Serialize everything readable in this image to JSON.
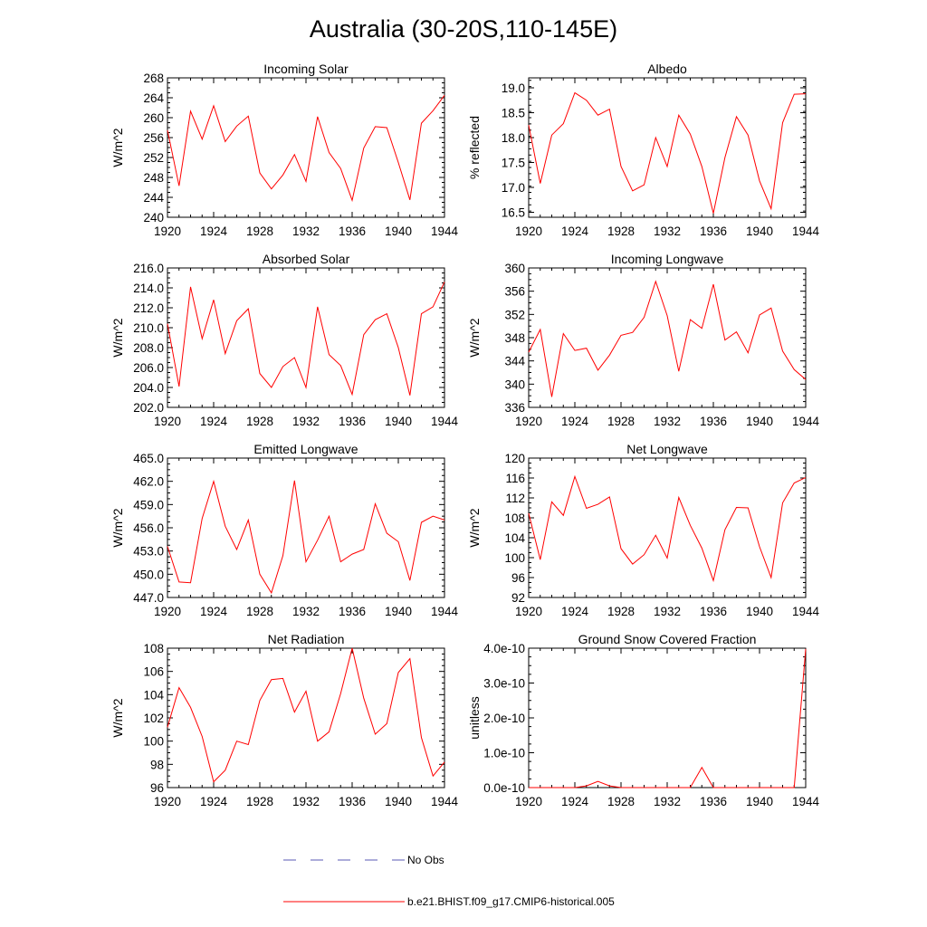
{
  "figure": {
    "title": "Australia (30-20S,110-145E)",
    "model_color": "#ff0000",
    "obs_color": "#5a5ab4"
  },
  "legend": {
    "obs_label": "No Obs",
    "model_label": "b.e21.BHIST.f09_g17.CMIP6-historical.005"
  },
  "chart_data": [
    {
      "type": "line",
      "title": "Incoming Solar",
      "ylabel": "W/m^2",
      "xlim": [
        1920,
        1944
      ],
      "ylim": [
        240,
        268
      ],
      "x_ticks": [
        "1920",
        "1924",
        "1928",
        "1932",
        "1936",
        "1940",
        "1944"
      ],
      "y_ticks": [
        "240",
        "244",
        "248",
        "252",
        "256",
        "260",
        "264",
        "268"
      ],
      "y_tick_values": [
        240,
        244,
        248,
        252,
        256,
        260,
        264,
        268
      ],
      "x": [
        1920,
        1921,
        1922,
        1923,
        1924,
        1925,
        1926,
        1927,
        1928,
        1929,
        1930,
        1931,
        1932,
        1933,
        1934,
        1935,
        1936,
        1937,
        1938,
        1939,
        1940,
        1941,
        1942,
        1943,
        1944
      ],
      "series": [
        {
          "name": "b.e21.BHIST.f09_g17.CMIP6-historical.005",
          "values": [
            257.5,
            246.3,
            261.3,
            255.7,
            262.4,
            255.2,
            258.3,
            260.3,
            248.9,
            245.7,
            248.5,
            252.6,
            247.2,
            260.2,
            253.0,
            249.8,
            243.4,
            253.9,
            258.2,
            258.0,
            251.0,
            243.5,
            258.9,
            261.4,
            264.5
          ]
        }
      ]
    },
    {
      "type": "line",
      "title": "Albedo",
      "ylabel": "% reflected",
      "xlim": [
        1920,
        1944
      ],
      "ylim": [
        16.4,
        19.2
      ],
      "x_ticks": [
        "1920",
        "1924",
        "1928",
        "1932",
        "1936",
        "1940",
        "1944"
      ],
      "y_ticks": [
        "16.5",
        "17.0",
        "17.5",
        "18.0",
        "18.5",
        "19.0"
      ],
      "y_tick_values": [
        16.5,
        17.0,
        17.5,
        18.0,
        18.5,
        19.0
      ],
      "x": [
        1920,
        1921,
        1922,
        1923,
        1924,
        1925,
        1926,
        1927,
        1928,
        1929,
        1930,
        1931,
        1932,
        1933,
        1934,
        1935,
        1936,
        1937,
        1938,
        1939,
        1940,
        1941,
        1942,
        1943,
        1944
      ],
      "series": [
        {
          "name": "b.e21.BHIST.f09_g17.CMIP6-historical.005",
          "values": [
            18.25,
            17.08,
            18.05,
            18.28,
            18.9,
            18.75,
            18.45,
            18.57,
            17.42,
            16.93,
            17.05,
            18.0,
            17.42,
            18.45,
            18.07,
            17.42,
            16.48,
            17.6,
            18.42,
            18.05,
            17.13,
            16.57,
            18.3,
            18.87,
            18.88
          ]
        }
      ]
    },
    {
      "type": "line",
      "title": "Absorbed Solar",
      "ylabel": "W/m^2",
      "xlim": [
        1920,
        1944
      ],
      "ylim": [
        202.0,
        216.0
      ],
      "x_ticks": [
        "1920",
        "1924",
        "1928",
        "1932",
        "1936",
        "1940",
        "1944"
      ],
      "y_ticks": [
        "202.0",
        "204.0",
        "206.0",
        "208.0",
        "210.0",
        "212.0",
        "214.0",
        "216.0"
      ],
      "y_tick_values": [
        202,
        204,
        206,
        208,
        210,
        212,
        214,
        216
      ],
      "x": [
        1920,
        1921,
        1922,
        1923,
        1924,
        1925,
        1926,
        1927,
        1928,
        1929,
        1930,
        1931,
        1932,
        1933,
        1934,
        1935,
        1936,
        1937,
        1938,
        1939,
        1940,
        1941,
        1942,
        1943,
        1944
      ],
      "series": [
        {
          "name": "b.e21.BHIST.f09_g17.CMIP6-historical.005",
          "values": [
            210.4,
            204.1,
            214.1,
            208.9,
            212.8,
            207.4,
            210.7,
            211.9,
            205.4,
            204.0,
            206.1,
            207.0,
            204.0,
            212.1,
            207.3,
            206.2,
            203.3,
            209.3,
            210.8,
            211.4,
            208.0,
            203.2,
            211.4,
            212.1,
            214.6
          ]
        }
      ]
    },
    {
      "type": "line",
      "title": "Incoming Longwave",
      "ylabel": "W/m^2",
      "xlim": [
        1920,
        1944
      ],
      "ylim": [
        336,
        360
      ],
      "x_ticks": [
        "1920",
        "1924",
        "1928",
        "1932",
        "1936",
        "1940",
        "1944"
      ],
      "y_ticks": [
        "336",
        "340",
        "344",
        "348",
        "352",
        "356",
        "360"
      ],
      "y_tick_values": [
        336,
        340,
        344,
        348,
        352,
        356,
        360
      ],
      "x": [
        1920,
        1921,
        1922,
        1923,
        1924,
        1925,
        1926,
        1927,
        1928,
        1929,
        1930,
        1931,
        1932,
        1933,
        1934,
        1935,
        1936,
        1937,
        1938,
        1939,
        1940,
        1941,
        1942,
        1943,
        1944
      ],
      "series": [
        {
          "name": "b.e21.BHIST.f09_g17.CMIP6-historical.005",
          "values": [
            345.5,
            349.4,
            337.8,
            348.7,
            345.8,
            346.2,
            342.4,
            345.0,
            348.4,
            348.9,
            351.5,
            357.7,
            351.8,
            342.2,
            351.1,
            349.6,
            357.2,
            347.6,
            349.0,
            345.4,
            351.9,
            353.1,
            345.7,
            342.5,
            340.8
          ]
        }
      ]
    },
    {
      "type": "line",
      "title": "Emitted Longwave",
      "ylabel": "W/m^2",
      "xlim": [
        1920,
        1944
      ],
      "ylim": [
        447.0,
        465.0
      ],
      "x_ticks": [
        "1920",
        "1924",
        "1928",
        "1932",
        "1936",
        "1940",
        "1944"
      ],
      "y_ticks": [
        "447.0",
        "450.0",
        "453.0",
        "456.0",
        "459.0",
        "462.0",
        "465.0"
      ],
      "y_tick_values": [
        447,
        450,
        453,
        456,
        459,
        462,
        465
      ],
      "x": [
        1920,
        1921,
        1922,
        1923,
        1924,
        1925,
        1926,
        1927,
        1928,
        1929,
        1930,
        1931,
        1932,
        1933,
        1934,
        1935,
        1936,
        1937,
        1938,
        1939,
        1940,
        1941,
        1942,
        1943,
        1944
      ],
      "series": [
        {
          "name": "b.e21.BHIST.f09_g17.CMIP6-historical.005",
          "values": [
            453.6,
            449.0,
            448.9,
            457.2,
            462.0,
            456.2,
            453.2,
            457.0,
            450.0,
            447.6,
            452.4,
            462.1,
            451.6,
            454.4,
            457.5,
            451.6,
            452.6,
            453.2,
            459.1,
            455.3,
            454.2,
            449.2,
            456.7,
            457.5,
            457.0
          ]
        }
      ]
    },
    {
      "type": "line",
      "title": "Net Longwave",
      "ylabel": "W/m^2",
      "xlim": [
        1920,
        1944
      ],
      "ylim": [
        92,
        120
      ],
      "x_ticks": [
        "1920",
        "1924",
        "1928",
        "1932",
        "1936",
        "1940",
        "1944"
      ],
      "y_ticks": [
        "92",
        "96",
        "100",
        "104",
        "108",
        "112",
        "116",
        "120"
      ],
      "y_tick_values": [
        92,
        96,
        100,
        104,
        108,
        112,
        116,
        120
      ],
      "x": [
        1920,
        1921,
        1922,
        1923,
        1924,
        1925,
        1926,
        1927,
        1928,
        1929,
        1930,
        1931,
        1932,
        1933,
        1934,
        1935,
        1936,
        1937,
        1938,
        1939,
        1940,
        1941,
        1942,
        1943,
        1944
      ],
      "series": [
        {
          "name": "b.e21.BHIST.f09_g17.CMIP6-historical.005",
          "values": [
            108.9,
            99.6,
            111.2,
            108.5,
            116.3,
            109.9,
            110.7,
            112.2,
            101.8,
            98.7,
            100.6,
            104.5,
            99.9,
            112.1,
            106.5,
            101.9,
            95.4,
            105.6,
            110.1,
            110.0,
            102.2,
            96.0,
            111.0,
            115.0,
            116.1
          ]
        }
      ]
    },
    {
      "type": "line",
      "title": "Net Radiation",
      "ylabel": "W/m^2",
      "xlim": [
        1920,
        1944
      ],
      "ylim": [
        96,
        108
      ],
      "x_ticks": [
        "1920",
        "1924",
        "1928",
        "1932",
        "1936",
        "1940",
        "1944"
      ],
      "y_ticks": [
        "96",
        "98",
        "100",
        "102",
        "104",
        "106",
        "108"
      ],
      "y_tick_values": [
        96,
        98,
        100,
        102,
        104,
        106,
        108
      ],
      "x": [
        1920,
        1921,
        1922,
        1923,
        1924,
        1925,
        1926,
        1927,
        1928,
        1929,
        1930,
        1931,
        1932,
        1933,
        1934,
        1935,
        1936,
        1937,
        1938,
        1939,
        1940,
        1941,
        1942,
        1943,
        1944
      ],
      "series": [
        {
          "name": "b.e21.BHIST.f09_g17.CMIP6-historical.005",
          "values": [
            101.2,
            104.6,
            102.9,
            100.4,
            96.5,
            97.5,
            100.0,
            99.7,
            103.5,
            105.3,
            105.4,
            102.5,
            104.3,
            100.0,
            100.8,
            104.1,
            108.0,
            103.7,
            100.6,
            101.5,
            105.9,
            107.1,
            100.3,
            97.0,
            98.2
          ]
        }
      ]
    },
    {
      "type": "line",
      "title": "Ground Snow Covered Fraction",
      "ylabel": "unitless",
      "xlim": [
        1920,
        1944
      ],
      "ylim": [
        0,
        4e-10
      ],
      "x_ticks": [
        "1920",
        "1924",
        "1928",
        "1932",
        "1936",
        "1940",
        "1944"
      ],
      "y_ticks": [
        "0.0e-10",
        "1.0e-10",
        "2.0e-10",
        "3.0e-10",
        "4.0e-10"
      ],
      "y_tick_values": [
        0,
        1e-10,
        2e-10,
        3e-10,
        4e-10
      ],
      "x": [
        1920,
        1921,
        1922,
        1923,
        1924,
        1925,
        1926,
        1927,
        1928,
        1929,
        1930,
        1931,
        1932,
        1933,
        1934,
        1935,
        1936,
        1937,
        1938,
        1939,
        1940,
        1941,
        1942,
        1943,
        1944
      ],
      "series": [
        {
          "name": "b.e21.BHIST.f09_g17.CMIP6-historical.005",
          "values": [
            0,
            0,
            0,
            0,
            0,
            5e-12,
            1.8e-11,
            5e-12,
            0,
            0,
            0,
            0,
            0,
            0,
            0,
            5.8e-11,
            0,
            0,
            0,
            0,
            0,
            0,
            0,
            0,
            3.98e-10
          ]
        }
      ]
    }
  ]
}
